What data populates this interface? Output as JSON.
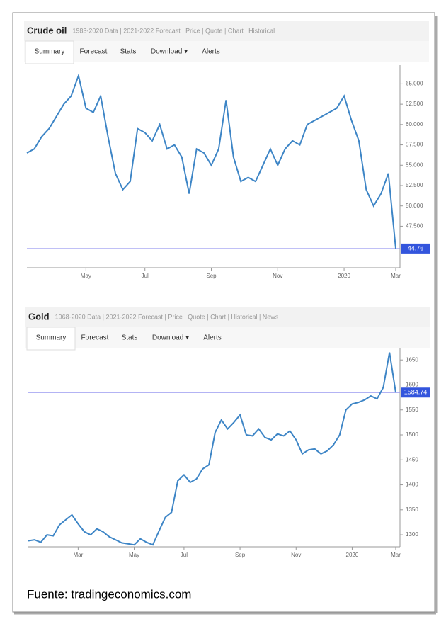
{
  "chart_data": [
    {
      "type": "line",
      "title": "Crude oil",
      "subtitle": "1983-2020 Data | 2021-2022 Forecast | Price | Quote | Chart | Historical",
      "tabs": [
        "Summary",
        "Forecast",
        "Stats",
        "Download ▾",
        "Alerts"
      ],
      "categories": [
        null,
        null,
        null,
        null,
        null,
        null,
        null,
        null,
        "May",
        null,
        null,
        null,
        null,
        null,
        null,
        null,
        "Jul",
        null,
        null,
        null,
        null,
        null,
        null,
        null,
        null,
        "Sep",
        null,
        null,
        null,
        null,
        null,
        null,
        null,
        null,
        "Nov",
        null,
        null,
        null,
        null,
        null,
        null,
        null,
        null,
        "2020",
        null,
        null,
        null,
        null,
        null,
        null,
        "Mar"
      ],
      "series": [
        {
          "name": "Crude oil",
          "color": "#3d85c6",
          "values": [
            56.5,
            57,
            58.5,
            59.5,
            61,
            62.5,
            63.5,
            66,
            62,
            61.5,
            63.5,
            58.5,
            54,
            52,
            53,
            59.5,
            59,
            58,
            60,
            57,
            57.5,
            56,
            51.5,
            57,
            56.5,
            55,
            57,
            63,
            56,
            53,
            53.5,
            53,
            55,
            57,
            55,
            57,
            58,
            57.5,
            60,
            60.5,
            61,
            61.5,
            62,
            63.5,
            60.5,
            58,
            52,
            50,
            51.5,
            54,
            44.76
          ]
        }
      ],
      "ylim": [
        42.4,
        67.3
      ],
      "yticks": [
        {
          "value": 47.5,
          "label": "47.500"
        },
        {
          "value": 50,
          "label": "50.000"
        },
        {
          "value": 52.5,
          "label": "52.500"
        },
        {
          "value": 55,
          "label": "55.000"
        },
        {
          "value": 57.5,
          "label": "57.500"
        },
        {
          "value": 60,
          "label": "60.000"
        },
        {
          "value": 62.5,
          "label": "62.500"
        },
        {
          "value": 65,
          "label": "65.000"
        }
      ]
    },
    {
      "type": "line",
      "title": "Gold",
      "subtitle": "1968-2020 Data | 2021-2022 Forecast | Price | Quote | Chart | Historical | News",
      "tabs": [
        "Summary",
        "Forecast",
        "Stats",
        "Download ▾",
        "Alerts"
      ],
      "categories": [
        null,
        null,
        null,
        null,
        null,
        null,
        null,
        null,
        "Mar",
        null,
        null,
        null,
        null,
        null,
        null,
        null,
        null,
        "May",
        null,
        null,
        null,
        null,
        null,
        null,
        null,
        "Jul",
        null,
        null,
        null,
        null,
        null,
        null,
        null,
        null,
        "Sep",
        null,
        null,
        null,
        null,
        null,
        null,
        null,
        null,
        "Nov",
        null,
        null,
        null,
        null,
        null,
        null,
        null,
        null,
        "2020",
        null,
        null,
        null,
        null,
        null,
        null,
        "Mar"
      ],
      "series": [
        {
          "name": "Gold",
          "color": "#3d85c6",
          "values": [
            1288,
            1290,
            1285,
            1300,
            1298,
            1320,
            1330,
            1340,
            1322,
            1306,
            1300,
            1312,
            1306,
            1296,
            1290,
            1284,
            1282,
            1280,
            1292,
            1285,
            1280,
            1308,
            1335,
            1345,
            1408,
            1420,
            1405,
            1412,
            1432,
            1440,
            1505,
            1530,
            1512,
            1525,
            1540,
            1500,
            1498,
            1512,
            1495,
            1490,
            1502,
            1498,
            1508,
            1490,
            1462,
            1470,
            1472,
            1462,
            1468,
            1480,
            1500,
            1550,
            1562,
            1565,
            1570,
            1578,
            1572,
            1595,
            1665,
            1584.74
          ]
        }
      ],
      "ylim": [
        1276,
        1673
      ],
      "yticks": [
        1300,
        1350,
        1400,
        1450,
        1500,
        1550,
        1600,
        1650
      ]
    }
  ],
  "source": "Fuente: tradingeconomics.com"
}
